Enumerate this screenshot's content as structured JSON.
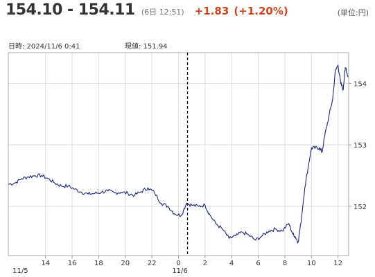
{
  "header": {
    "price": "154.10 - 154.11",
    "time": "(6日 12:51)",
    "change": "+1.83",
    "change_pct": "(+1.20%)",
    "unit": "(単位:円)"
  },
  "info": {
    "date_label": "日時: 2024/11/6  0:41",
    "price_label": "現値: 151.94"
  },
  "colors": {
    "line": "#1a237e",
    "change": "#d0451b",
    "grid": "#dddddd",
    "marker": "#000000"
  },
  "chart_data": {
    "type": "line",
    "x_unit": "hours (0 = 2024/11/6 00:00)",
    "xlim": [
      -12.8,
      12.8
    ],
    "ylim": [
      151.2,
      154.5
    ],
    "grid": true,
    "y_ticks": [
      "152",
      "153",
      "154"
    ],
    "x_ticks": [
      "14",
      "16",
      "18",
      "20",
      "22",
      "0",
      "2",
      "4",
      "6",
      "8",
      "10",
      "12"
    ],
    "x_date_labels": [
      {
        "at": -12,
        "label": "11/5"
      },
      {
        "at": 0,
        "label": "11/6"
      }
    ],
    "marker_x": 0.68,
    "series": [
      {
        "values": [
          [
            -12.8,
            152.36
          ],
          [
            -12.3,
            152.38
          ],
          [
            -11.8,
            152.45
          ],
          [
            -11.3,
            152.48
          ],
          [
            -10.8,
            152.5
          ],
          [
            -10.3,
            152.5
          ],
          [
            -9.8,
            152.45
          ],
          [
            -9.3,
            152.38
          ],
          [
            -8.8,
            152.33
          ],
          [
            -8.3,
            152.33
          ],
          [
            -7.8,
            152.28
          ],
          [
            -7.3,
            152.23
          ],
          [
            -6.8,
            152.2
          ],
          [
            -6.3,
            152.21
          ],
          [
            -5.8,
            152.23
          ],
          [
            -5.3,
            152.25
          ],
          [
            -4.8,
            152.22
          ],
          [
            -4.3,
            152.23
          ],
          [
            -3.8,
            152.21
          ],
          [
            -3.3,
            152.18
          ],
          [
            -2.8,
            152.24
          ],
          [
            -2.3,
            152.3
          ],
          [
            -1.8,
            152.22
          ],
          [
            -1.3,
            152.05
          ],
          [
            -0.8,
            152.0
          ],
          [
            -0.3,
            151.88
          ],
          [
            0.2,
            151.85
          ],
          [
            0.6,
            152.05
          ],
          [
            1.0,
            152.02
          ],
          [
            1.5,
            152.0
          ],
          [
            2.0,
            152.02
          ],
          [
            2.3,
            151.88
          ],
          [
            2.8,
            151.72
          ],
          [
            3.3,
            151.63
          ],
          [
            3.8,
            151.48
          ],
          [
            4.3,
            151.52
          ],
          [
            4.8,
            151.58
          ],
          [
            5.3,
            151.53
          ],
          [
            5.8,
            151.45
          ],
          [
            6.3,
            151.52
          ],
          [
            6.8,
            151.6
          ],
          [
            7.3,
            151.63
          ],
          [
            7.8,
            151.6
          ],
          [
            8.3,
            151.72
          ],
          [
            8.6,
            151.55
          ],
          [
            8.8,
            151.5
          ],
          [
            9.0,
            151.42
          ],
          [
            9.2,
            151.72
          ],
          [
            9.5,
            152.3
          ],
          [
            9.8,
            152.7
          ],
          [
            10.0,
            152.95
          ],
          [
            10.3,
            152.95
          ],
          [
            10.6,
            152.95
          ],
          [
            10.8,
            152.88
          ],
          [
            11.0,
            153.15
          ],
          [
            11.3,
            153.45
          ],
          [
            11.6,
            153.75
          ],
          [
            11.8,
            154.2
          ],
          [
            12.0,
            154.3
          ],
          [
            12.2,
            154.0
          ],
          [
            12.4,
            153.9
          ],
          [
            12.5,
            154.2
          ],
          [
            12.6,
            154.25
          ],
          [
            12.75,
            154.1
          ]
        ]
      }
    ]
  }
}
